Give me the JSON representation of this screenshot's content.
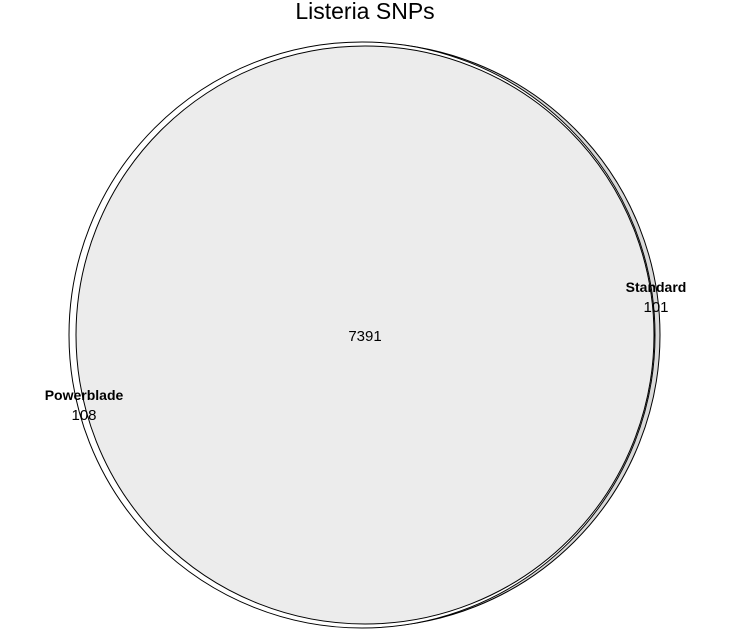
{
  "title": "Listeria SNPs",
  "sets": [
    {
      "name": "Standard",
      "only_count": "101",
      "fill": "#d9d9d9"
    },
    {
      "name": "Powerblade",
      "only_count": "108",
      "fill": "#ffffff"
    }
  ],
  "intersection": {
    "count": "7391",
    "fill": "#ececec"
  },
  "outline_color": "#000000"
}
